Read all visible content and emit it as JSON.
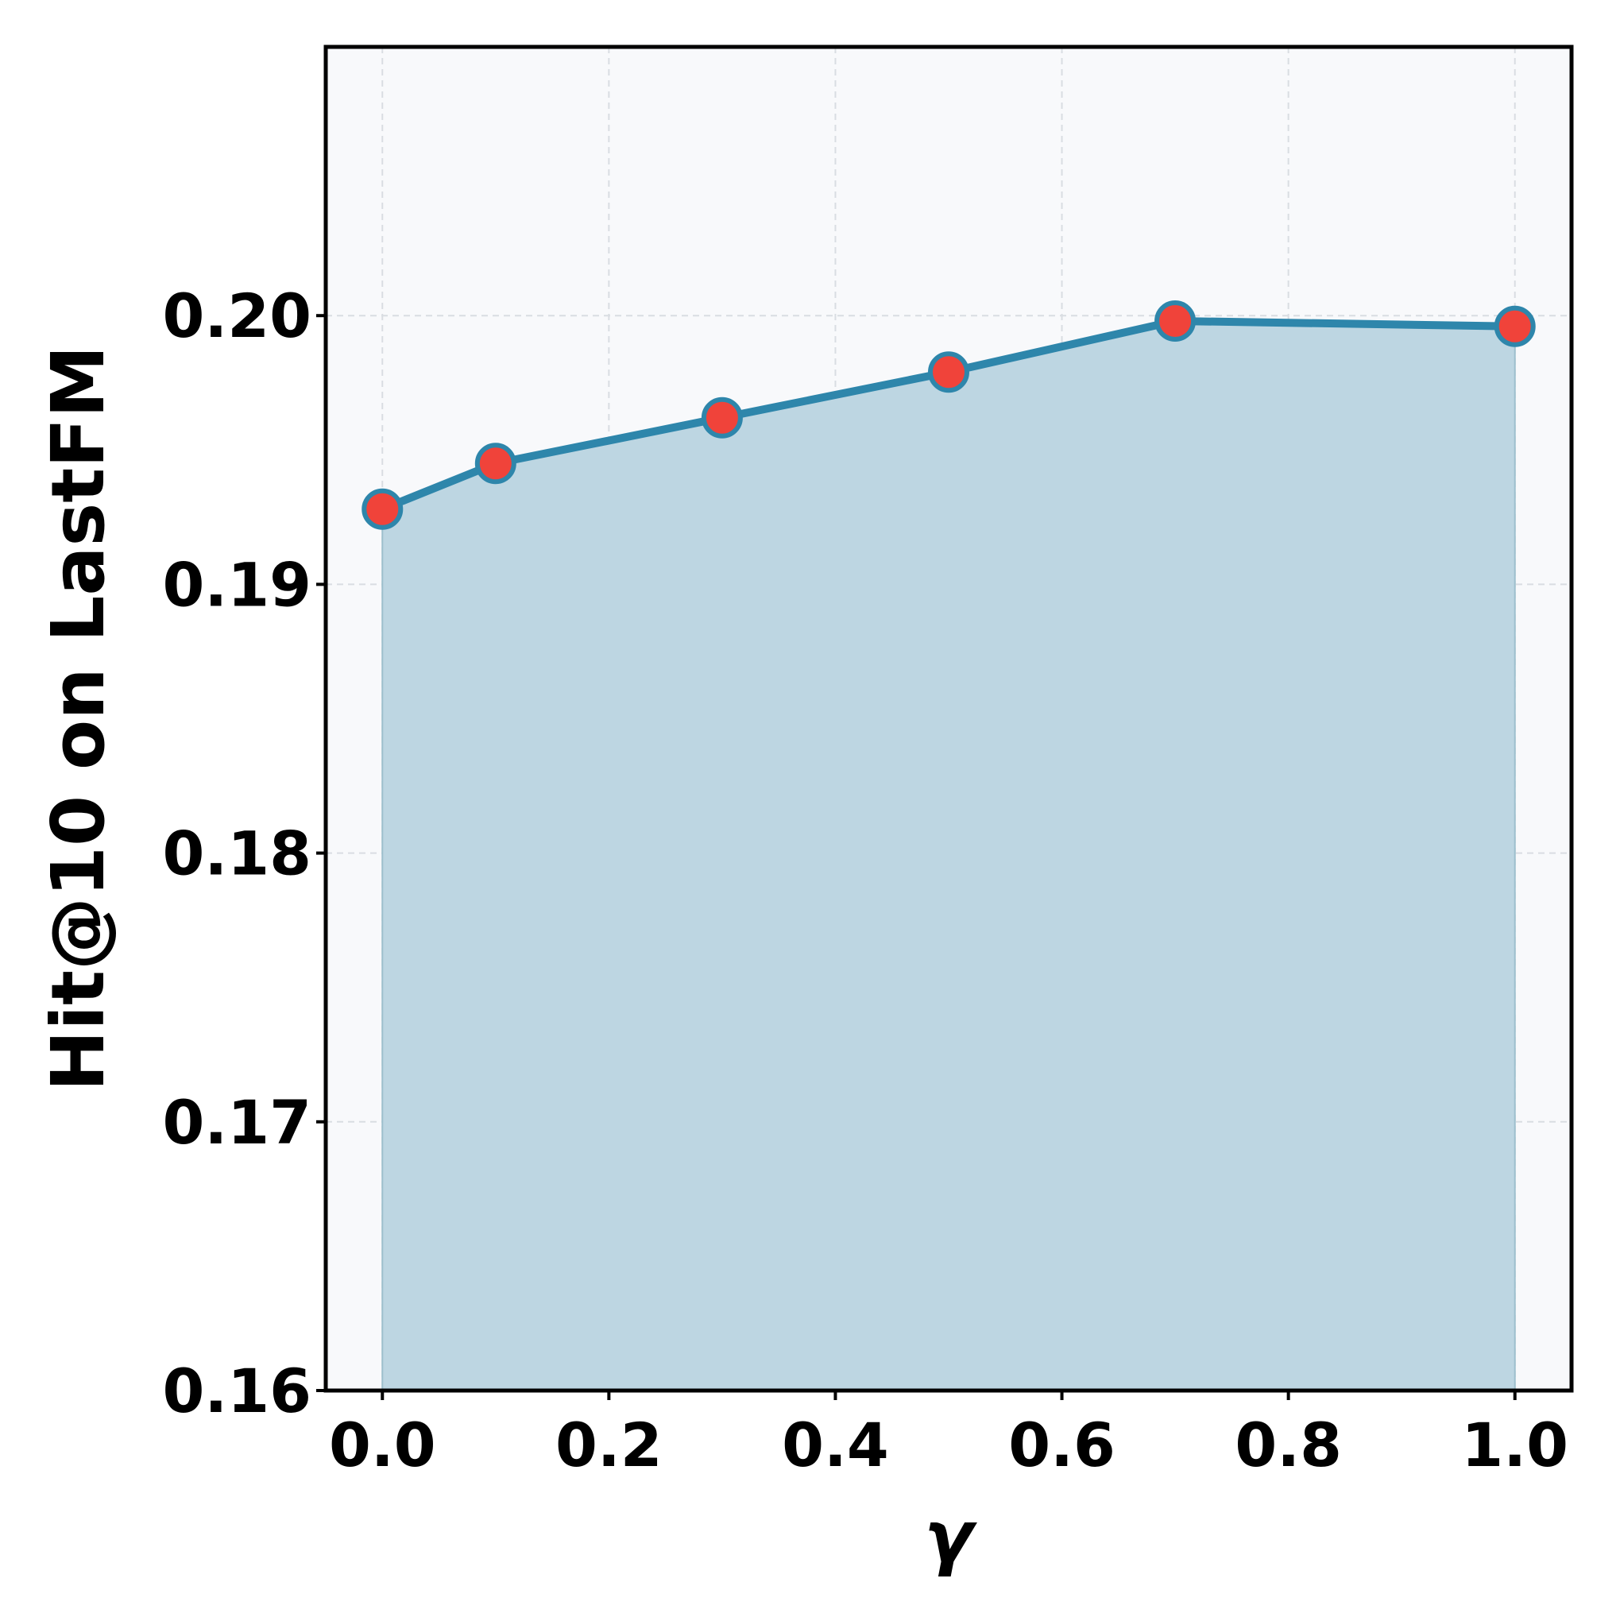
{
  "chart_data": {
    "type": "line",
    "x": [
      0.0,
      0.1,
      0.3,
      0.5,
      0.7,
      1.0
    ],
    "series": [
      {
        "color": "#2e86ab",
        "marker_color": "#f0433a",
        "fill_color": "#bdd6e2",
        "values": [
          0.1928,
          0.1945,
          0.1962,
          0.1979,
          0.1998,
          0.1996
        ]
      }
    ],
    "xlabel": "γ",
    "ylabel": "Hit@10 on LastFM",
    "xlim": [
      -0.05,
      1.05
    ],
    "ylim": [
      0.16,
      0.21
    ],
    "xticks": [
      {
        "value": 0.0,
        "label": "0.0"
      },
      0.2,
      0.4,
      0.6,
      0.8,
      {
        "value": 1.0,
        "label": "1.0"
      }
    ],
    "yticks": [
      0.16,
      0.17,
      0.18,
      0.19,
      {
        "value": 0.2,
        "label": "0.20"
      }
    ],
    "grid": true
  }
}
